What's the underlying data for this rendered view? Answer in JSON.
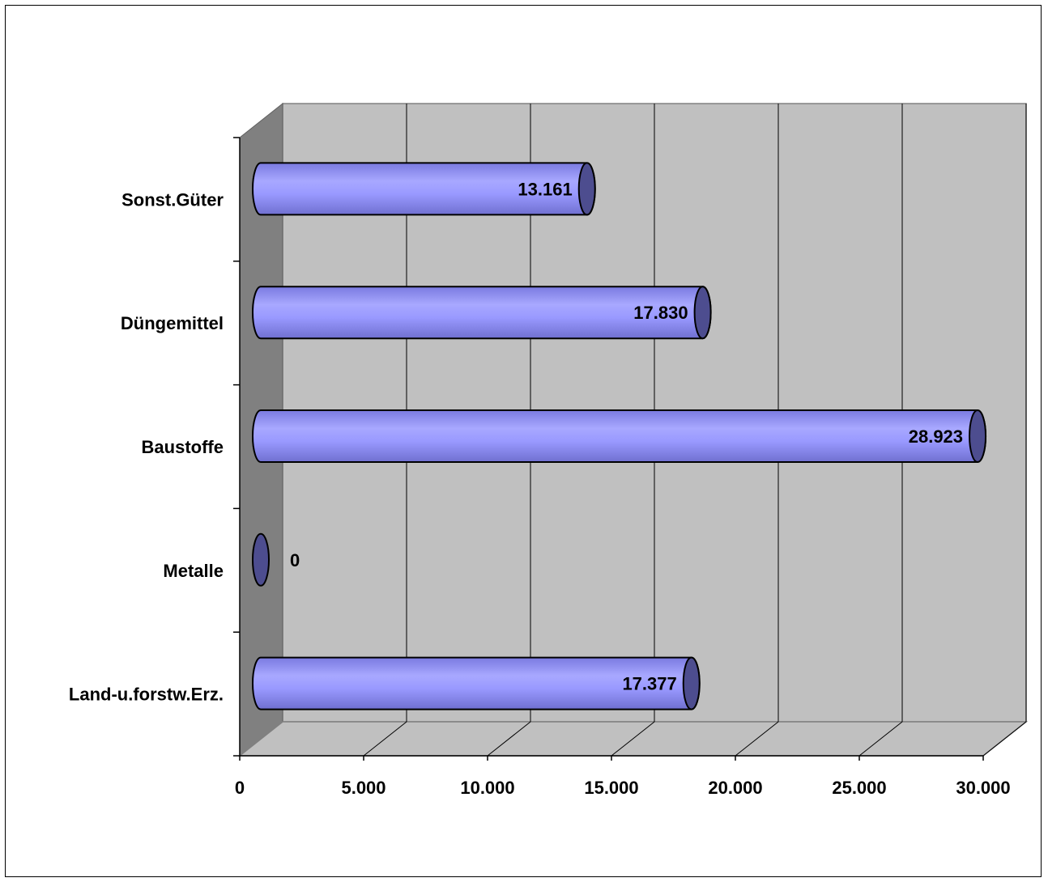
{
  "chart_data": {
    "type": "bar",
    "orientation": "horizontal",
    "style": "3d-cylinder",
    "title": "",
    "xlabel": "",
    "ylabel": "",
    "categories": [
      "Land-u.forstw.Erz.",
      "Metalle",
      "Baustoffe",
      "Düngemittel",
      "Sonst.Güter"
    ],
    "values": [
      17377,
      0,
      28923,
      17830,
      13161
    ],
    "value_labels": [
      "17.377",
      "0",
      "28.923",
      "17.830",
      "13.161"
    ],
    "xlim": [
      0,
      30000
    ],
    "x_ticks": [
      0,
      5000,
      10000,
      15000,
      20000,
      25000,
      30000
    ],
    "x_tick_labels": [
      "0",
      "5.000",
      "10.000",
      "15.000",
      "20.000",
      "25.000",
      "30.000"
    ],
    "grid": true,
    "legend": "none",
    "colors": {
      "bar": "#9999ff",
      "bar_cap": "#4d4d8f",
      "wall": "#c0c0c0",
      "side_wall": "#808080",
      "floor": "#c0c0c0"
    }
  }
}
